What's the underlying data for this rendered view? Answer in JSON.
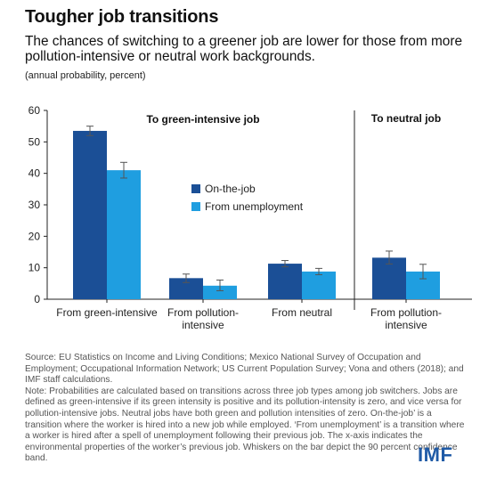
{
  "header": {
    "title": "Tougher job transitions",
    "subtitle": "The chances of switching to a greener job are lower for those from more pollution-intensive or neutral work backgrounds.",
    "unit": "(annual probability, percent)"
  },
  "footer": {
    "source": "Source: EU Statistics on Income and Living Conditions; Mexico National Survey of Occupation and Employment; Occupational Information Network; US Current Population Survey; Vona and others (2018); and IMF staff calculations.",
    "note": "Note: Probabilities are calculated based on transitions across three job types among job switchers. Jobs are defined as green-intensive if its green intensity is positive and its pollution-intensity is zero, and vice versa for pollution-intensive jobs. Neutral jobs have both green and pollution intensities of zero. On-the-job’ is a transition where the worker is hired into a new job while employed. ‘From unemployment’ is a transition where a worker is hired after a spell of unemployment following their previous job. The x-axis indicates the environmental properties of the worker’s previous job. Whiskers on the bar depict the 90 percent confidence band.",
    "logo": "IMF"
  },
  "colors": {
    "on_the_job": "#1b4f96",
    "from_unemployment": "#1f9ee0",
    "whisker": "#555555",
    "axis": "#222222"
  },
  "chart_data": {
    "type": "bar",
    "ylim": [
      0,
      60
    ],
    "yticks": [
      0,
      10,
      20,
      30,
      40,
      50,
      60
    ],
    "grid": false,
    "legend_position": "center",
    "panels": [
      {
        "label": "To green-intensive job",
        "categories": [
          [
            "From green-intensive"
          ],
          [
            "From pollution-",
            "intensive"
          ],
          [
            "From neutral"
          ]
        ]
      },
      {
        "label": "To neutral job",
        "categories": [
          [
            "From pollution-",
            "intensive"
          ]
        ]
      }
    ],
    "series": [
      {
        "name": "On-the-job",
        "values": [
          53.5,
          6.7,
          11.3,
          13.2
        ],
        "ci_low": [
          52.0,
          5.3,
          10.3,
          11.2
        ],
        "ci_high": [
          55.0,
          8.0,
          12.3,
          15.3
        ]
      },
      {
        "name": "From unemployment",
        "values": [
          41.0,
          4.3,
          8.8,
          8.8
        ],
        "ci_low": [
          38.5,
          2.7,
          7.8,
          6.5
        ],
        "ci_high": [
          43.5,
          6.1,
          9.8,
          11.1
        ]
      }
    ]
  }
}
